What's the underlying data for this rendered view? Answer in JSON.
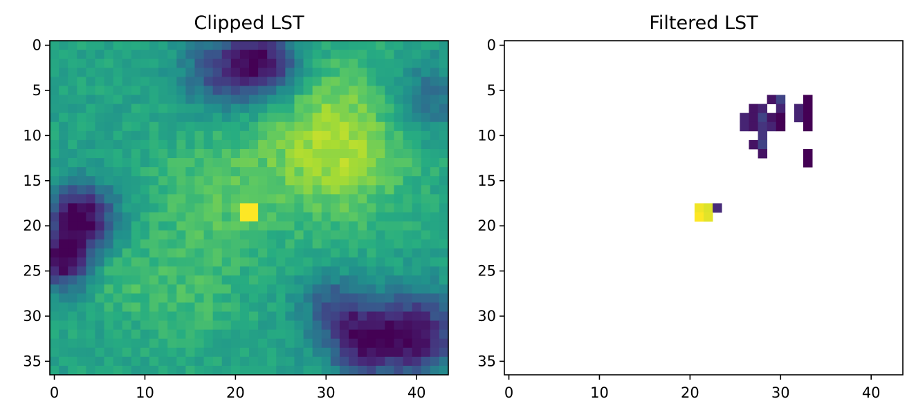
{
  "chart_data": [
    {
      "type": "heatmap",
      "title": "Clipped LST",
      "xlabel": "",
      "ylabel": "",
      "rows": 37,
      "cols": 44,
      "xlim": [
        -0.5,
        43.5
      ],
      "ylim": [
        36.5,
        -0.5
      ],
      "x_ticks": [
        0,
        10,
        20,
        30,
        40
      ],
      "y_ticks": [
        0,
        5,
        10,
        15,
        20,
        25,
        30,
        35
      ],
      "colormap": "viridis",
      "value_range": [
        0,
        1
      ],
      "grid": false,
      "pattern": "smooth spatial field: warm region centred near column 30, row 12; cool patches top-centre (row 1-6, col 18-28), left (row 17-27, col 0-6), lower-right (row 26-36, col 32-43); single hot pixels at rows 18-19, cols 21-22"
    },
    {
      "type": "heatmap",
      "title": "Filtered LST",
      "xlabel": "",
      "ylabel": "",
      "rows": 37,
      "cols": 44,
      "xlim": [
        -0.5,
        43.5
      ],
      "ylim": [
        36.5,
        -0.5
      ],
      "x_ticks": [
        0,
        10,
        20,
        30,
        40
      ],
      "y_ticks": [
        0,
        5,
        10,
        15,
        20,
        25,
        30,
        35
      ],
      "colormap": "viridis",
      "value_range": [
        0,
        1
      ],
      "grid": false,
      "cells": [
        {
          "row": 6,
          "col": 29,
          "value": 0.05
        },
        {
          "row": 6,
          "col": 30,
          "value": 0.2
        },
        {
          "row": 6,
          "col": 33,
          "value": 0.0
        },
        {
          "row": 7,
          "col": 27,
          "value": 0.05
        },
        {
          "row": 7,
          "col": 28,
          "value": 0.1
        },
        {
          "row": 7,
          "col": 30,
          "value": 0.1
        },
        {
          "row": 7,
          "col": 32,
          "value": 0.1
        },
        {
          "row": 7,
          "col": 33,
          "value": 0.0
        },
        {
          "row": 8,
          "col": 26,
          "value": 0.1
        },
        {
          "row": 8,
          "col": 27,
          "value": 0.05
        },
        {
          "row": 8,
          "col": 28,
          "value": 0.2
        },
        {
          "row": 8,
          "col": 29,
          "value": 0.05
        },
        {
          "row": 8,
          "col": 30,
          "value": 0.0
        },
        {
          "row": 8,
          "col": 32,
          "value": 0.1
        },
        {
          "row": 8,
          "col": 33,
          "value": 0.0
        },
        {
          "row": 9,
          "col": 26,
          "value": 0.1
        },
        {
          "row": 9,
          "col": 27,
          "value": 0.05
        },
        {
          "row": 9,
          "col": 28,
          "value": 0.15
        },
        {
          "row": 9,
          "col": 29,
          "value": 0.1
        },
        {
          "row": 9,
          "col": 30,
          "value": 0.0
        },
        {
          "row": 9,
          "col": 33,
          "value": 0.0
        },
        {
          "row": 10,
          "col": 28,
          "value": 0.15
        },
        {
          "row": 11,
          "col": 27,
          "value": 0.05
        },
        {
          "row": 11,
          "col": 28,
          "value": 0.2
        },
        {
          "row": 12,
          "col": 28,
          "value": 0.05
        },
        {
          "row": 12,
          "col": 33,
          "value": 0.0
        },
        {
          "row": 13,
          "col": 33,
          "value": 0.0
        },
        {
          "row": 18,
          "col": 21,
          "value": 0.98
        },
        {
          "row": 18,
          "col": 22,
          "value": 0.95
        },
        {
          "row": 18,
          "col": 23,
          "value": 0.12
        },
        {
          "row": 19,
          "col": 21,
          "value": 1.0
        },
        {
          "row": 19,
          "col": 22,
          "value": 0.96
        }
      ]
    }
  ]
}
